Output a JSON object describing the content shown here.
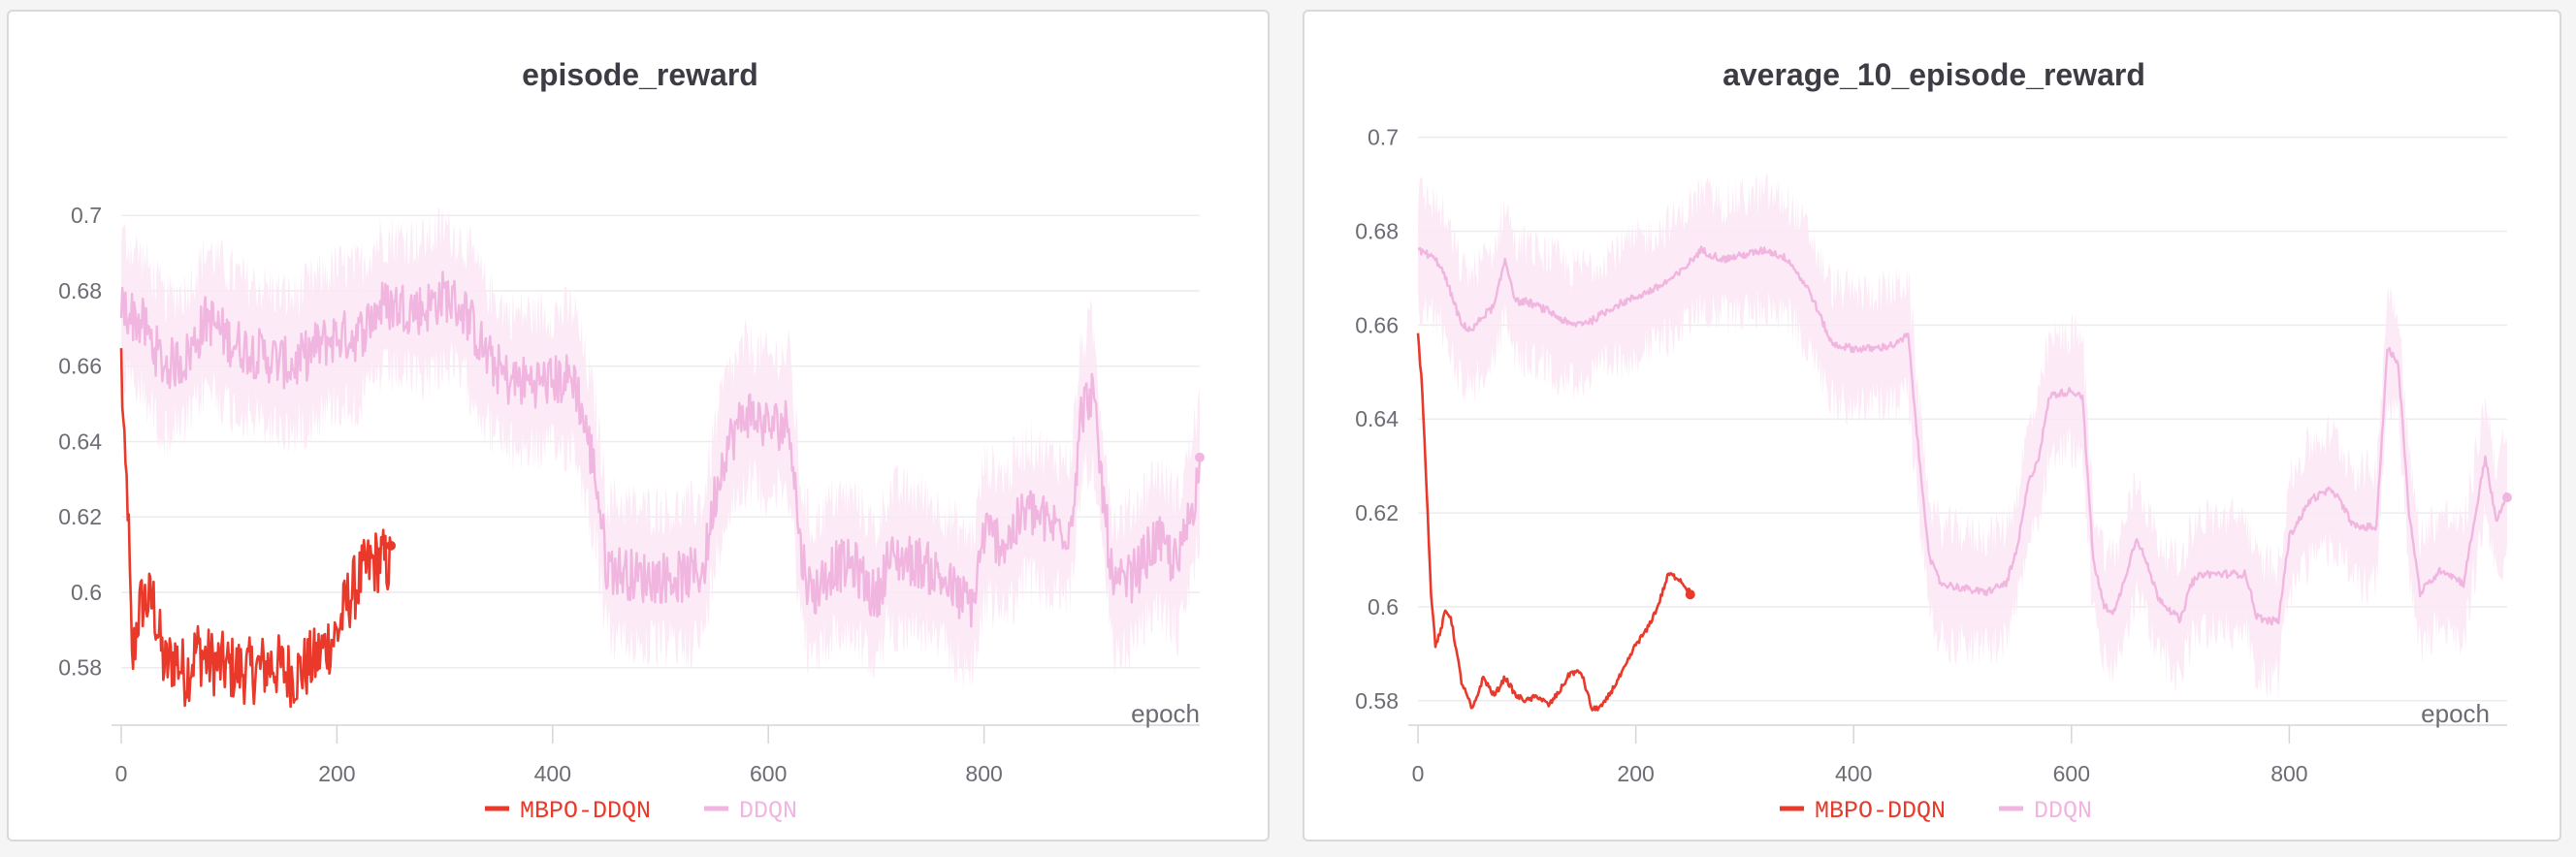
{
  "colors": {
    "mbpo": "#e8392a",
    "ddqn": "#f1b6e0",
    "ddqn_band": "#fbe8f5"
  },
  "legend": {
    "mbpo": "MBPO-DDQN",
    "ddqn": "DDQN"
  },
  "chart_data": [
    {
      "type": "line",
      "title": "episode_reward",
      "xlabel": "epoch",
      "ylabel": "",
      "xlim": [
        0,
        1000
      ],
      "ylim": [
        0.565,
        0.707
      ],
      "xticks": [
        "0",
        "200",
        "400",
        "600",
        "800"
      ],
      "yticks": [
        "0.58",
        "0.6",
        "0.62",
        "0.64",
        "0.66",
        "0.68",
        "0.7"
      ],
      "grid": true,
      "legend_position": "bottom-center",
      "series": [
        {
          "name": "MBPO-DDQN",
          "noise": 0.009,
          "x": [
            0,
            3,
            6,
            10,
            15,
            20,
            30,
            40,
            50,
            60,
            70,
            80,
            100,
            120,
            140,
            160,
            180,
            190,
            200,
            210,
            220,
            230,
            240,
            250
          ],
          "y": [
            0.662,
            0.634,
            0.625,
            0.58,
            0.593,
            0.598,
            0.597,
            0.58,
            0.583,
            0.578,
            0.585,
            0.582,
            0.58,
            0.579,
            0.581,
            0.578,
            0.582,
            0.586,
            0.589,
            0.598,
            0.603,
            0.607,
            0.609,
            0.607
          ]
        },
        {
          "name": "DDQN",
          "noise": 0.007,
          "band": 0.018,
          "x": [
            0,
            20,
            40,
            60,
            80,
            100,
            120,
            140,
            160,
            180,
            200,
            220,
            240,
            260,
            280,
            300,
            320,
            340,
            360,
            380,
            400,
            420,
            440,
            450,
            460,
            480,
            500,
            520,
            540,
            550,
            560,
            580,
            600,
            620,
            630,
            640,
            660,
            680,
            700,
            710,
            720,
            740,
            760,
            780,
            790,
            800,
            820,
            840,
            860,
            880,
            890,
            900,
            920,
            940,
            960,
            980,
            1000
          ],
          "y": [
            0.676,
            0.671,
            0.66,
            0.662,
            0.673,
            0.667,
            0.664,
            0.662,
            0.66,
            0.665,
            0.668,
            0.668,
            0.676,
            0.676,
            0.675,
            0.679,
            0.674,
            0.662,
            0.656,
            0.656,
            0.656,
            0.657,
            0.631,
            0.607,
            0.606,
            0.604,
            0.604,
            0.604,
            0.606,
            0.625,
            0.638,
            0.648,
            0.644,
            0.645,
            0.611,
            0.599,
            0.607,
            0.607,
            0.598,
            0.608,
            0.609,
            0.608,
            0.604,
            0.598,
            0.597,
            0.616,
            0.613,
            0.622,
            0.618,
            0.617,
            0.647,
            0.654,
            0.6,
            0.605,
            0.614,
            0.607,
            0.632
          ]
        }
      ]
    },
    {
      "type": "line",
      "title": "average_10_episode_reward",
      "xlabel": "epoch",
      "ylabel": "",
      "xlim": [
        0,
        1000
      ],
      "ylim": [
        0.575,
        0.702
      ],
      "xticks": [
        "0",
        "200",
        "400",
        "600",
        "800"
      ],
      "yticks": [
        "0.58",
        "0.6",
        "0.62",
        "0.64",
        "0.66",
        "0.68",
        "0.7"
      ],
      "grid": true,
      "legend_position": "bottom-center",
      "series": [
        {
          "name": "MBPO-DDQN",
          "noise": 0.0006,
          "x": [
            0,
            4,
            8,
            12,
            16,
            20,
            25,
            30,
            35,
            40,
            50,
            60,
            70,
            80,
            90,
            100,
            110,
            120,
            130,
            140,
            150,
            160,
            170,
            180,
            190,
            200,
            210,
            220,
            230,
            240,
            250
          ],
          "y": [
            0.658,
            0.646,
            0.625,
            0.603,
            0.592,
            0.594,
            0.599,
            0.598,
            0.591,
            0.584,
            0.578,
            0.585,
            0.581,
            0.585,
            0.581,
            0.58,
            0.581,
            0.579,
            0.582,
            0.586,
            0.586,
            0.578,
            0.579,
            0.583,
            0.587,
            0.592,
            0.595,
            0.6,
            0.607,
            0.606,
            0.603
          ]
        },
        {
          "name": "DDQN",
          "noise": 0.0008,
          "band": 0.012,
          "x": [
            0,
            10,
            20,
            30,
            40,
            50,
            60,
            70,
            80,
            90,
            100,
            120,
            140,
            160,
            180,
            200,
            220,
            240,
            260,
            280,
            300,
            320,
            340,
            360,
            380,
            400,
            420,
            440,
            450,
            460,
            470,
            480,
            500,
            520,
            540,
            550,
            560,
            570,
            580,
            600,
            610,
            620,
            630,
            640,
            660,
            680,
            700,
            710,
            720,
            740,
            760,
            770,
            780,
            790,
            800,
            810,
            820,
            840,
            860,
            880,
            890,
            900,
            910,
            920,
            940,
            960,
            980,
            990,
            1000
          ],
          "y": [
            0.676,
            0.675,
            0.673,
            0.667,
            0.66,
            0.659,
            0.662,
            0.664,
            0.674,
            0.665,
            0.665,
            0.663,
            0.66,
            0.661,
            0.664,
            0.666,
            0.668,
            0.671,
            0.676,
            0.674,
            0.675,
            0.676,
            0.674,
            0.667,
            0.656,
            0.655,
            0.655,
            0.656,
            0.658,
            0.632,
            0.61,
            0.605,
            0.604,
            0.603,
            0.605,
            0.612,
            0.626,
            0.632,
            0.645,
            0.646,
            0.645,
            0.61,
            0.6,
            0.599,
            0.615,
            0.602,
            0.597,
            0.605,
            0.607,
            0.607,
            0.607,
            0.598,
            0.597,
            0.597,
            0.615,
            0.619,
            0.623,
            0.625,
            0.617,
            0.617,
            0.655,
            0.652,
            0.62,
            0.603,
            0.608,
            0.605,
            0.632,
            0.618,
            0.624
          ]
        }
      ]
    }
  ]
}
